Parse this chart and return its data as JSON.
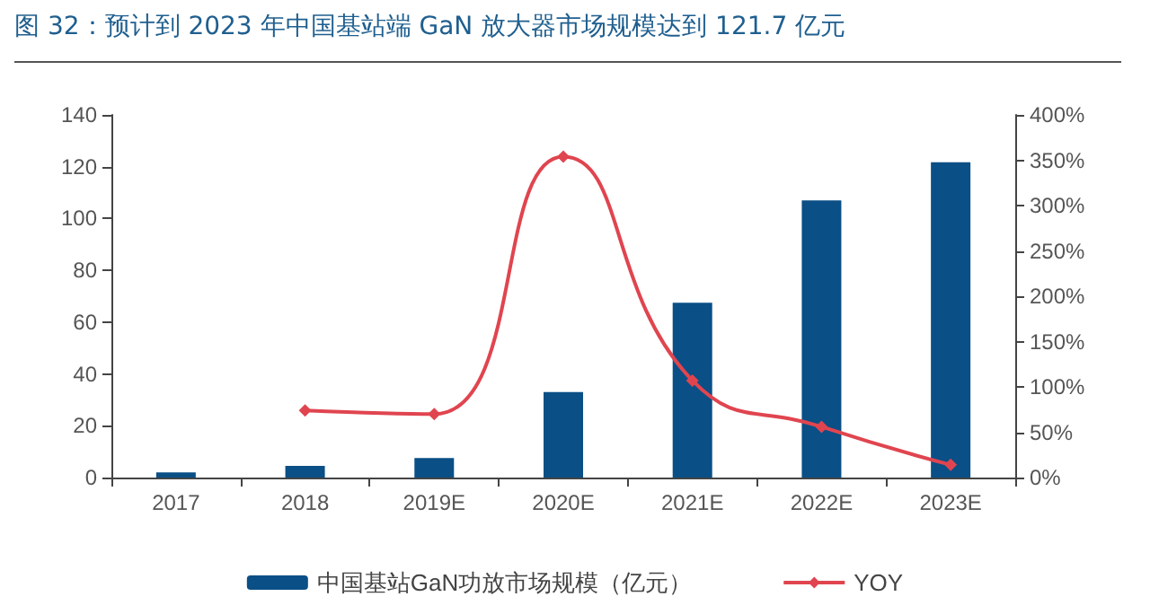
{
  "chart_data": {
    "type": "bar",
    "title": "图 32：预计到 2023 年中国基站端 GaN 放大器市场规模达到 121.7 亿元",
    "categories": [
      "2017",
      "2018",
      "2019E",
      "2020E",
      "2021E",
      "2022E",
      "2023E"
    ],
    "series": [
      {
        "name": "中国基站GaN功放市场规模（亿元）",
        "color": "#0a4f86",
        "values": [
          2,
          4.5,
          7.5,
          33,
          67.5,
          107,
          121.7
        ]
      },
      {
        "name": "YOY",
        "type": "line",
        "axis": "y2",
        "color": "#e0454f",
        "marker": "diamond",
        "values": [
          null,
          74,
          70,
          354,
          107,
          56,
          14
        ]
      }
    ],
    "ylim": [
      0,
      140
    ],
    "yticks": [
      0,
      20,
      40,
      60,
      80,
      100,
      120,
      140
    ],
    "y2lim": [
      0,
      400
    ],
    "y2ticks": [
      {
        "value": 0,
        "label": "0%"
      },
      {
        "value": 50,
        "label": "50%"
      },
      {
        "value": 100,
        "label": "100%"
      },
      {
        "value": 150,
        "label": "150%"
      },
      {
        "value": 200,
        "label": "200%"
      },
      {
        "value": 250,
        "label": "250%"
      },
      {
        "value": 300,
        "label": "300%"
      },
      {
        "value": 350,
        "label": "350%"
      },
      {
        "value": 400,
        "label": "400%"
      }
    ],
    "grid": false,
    "legend": "bottom"
  }
}
